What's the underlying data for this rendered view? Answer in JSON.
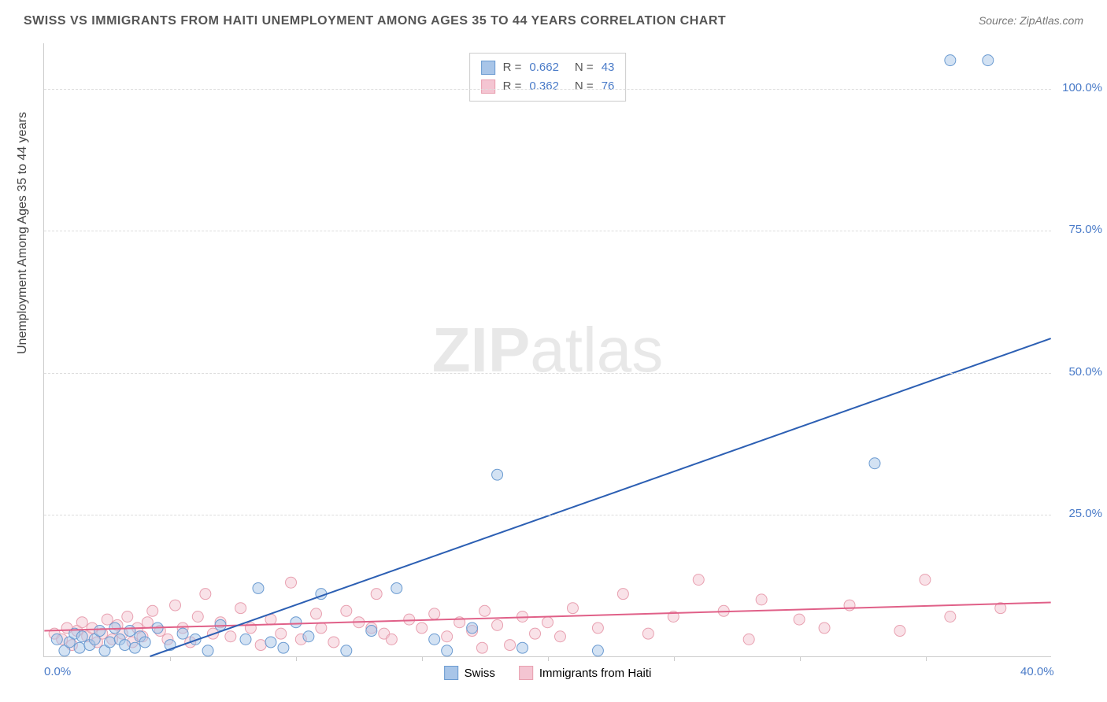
{
  "title": "SWISS VS IMMIGRANTS FROM HAITI UNEMPLOYMENT AMONG AGES 35 TO 44 YEARS CORRELATION CHART",
  "source": "Source: ZipAtlas.com",
  "ylabel": "Unemployment Among Ages 35 to 44 years",
  "watermark_a": "ZIP",
  "watermark_b": "atlas",
  "chart": {
    "type": "scatter",
    "xlim": [
      0,
      40
    ],
    "ylim": [
      0,
      108
    ],
    "xtick_labels": [
      "0.0%",
      "40.0%"
    ],
    "xtick_positions": [
      0,
      40
    ],
    "xtick_minor": [
      5,
      10,
      15,
      20,
      25,
      30,
      35
    ],
    "ytick_labels": [
      "25.0%",
      "50.0%",
      "75.0%",
      "100.0%"
    ],
    "ytick_positions": [
      25,
      50,
      75,
      100
    ],
    "grid_color": "#dddddd",
    "axis_color": "#cccccc",
    "background_color": "#ffffff",
    "marker_radius": 7,
    "marker_opacity": 0.5,
    "line_width": 2
  },
  "series": {
    "swiss": {
      "label": "Swiss",
      "color": "#6b9bd1",
      "fill": "#a8c5e8",
      "line_color": "#2c5fb3",
      "R": "0.662",
      "N": "43",
      "trend": {
        "x1": 4.2,
        "y1": 0,
        "x2": 40,
        "y2": 56
      },
      "points": [
        [
          0.5,
          3
        ],
        [
          0.8,
          1
        ],
        [
          1.0,
          2.5
        ],
        [
          1.2,
          4
        ],
        [
          1.4,
          1.5
        ],
        [
          1.5,
          3.5
        ],
        [
          1.8,
          2
        ],
        [
          2.0,
          3
        ],
        [
          2.2,
          4.5
        ],
        [
          2.4,
          1
        ],
        [
          2.6,
          2.5
        ],
        [
          2.8,
          5
        ],
        [
          3.0,
          3
        ],
        [
          3.2,
          2
        ],
        [
          3.4,
          4.5
        ],
        [
          3.6,
          1.5
        ],
        [
          3.8,
          3.5
        ],
        [
          4.0,
          2.5
        ],
        [
          4.5,
          5
        ],
        [
          5.0,
          2
        ],
        [
          5.5,
          4
        ],
        [
          6.0,
          3
        ],
        [
          6.5,
          1
        ],
        [
          7.0,
          5.5
        ],
        [
          8.0,
          3
        ],
        [
          8.5,
          12
        ],
        [
          9.0,
          2.5
        ],
        [
          9.5,
          1.5
        ],
        [
          10.0,
          6
        ],
        [
          10.5,
          3.5
        ],
        [
          11.0,
          11
        ],
        [
          12.0,
          1
        ],
        [
          13.0,
          4.5
        ],
        [
          14.0,
          12
        ],
        [
          15.5,
          3
        ],
        [
          16.0,
          1
        ],
        [
          17.0,
          5
        ],
        [
          18.0,
          32
        ],
        [
          19.0,
          1.5
        ],
        [
          22.0,
          1
        ],
        [
          33.0,
          34
        ],
        [
          36.0,
          105
        ],
        [
          37.5,
          105
        ]
      ]
    },
    "haiti": {
      "label": "Immigrants from Haiti",
      "color": "#e8a0b0",
      "fill": "#f4c5d2",
      "line_color": "#e06088",
      "R": "0.362",
      "N": "76",
      "trend": {
        "x1": 0,
        "y1": 4.5,
        "x2": 40,
        "y2": 9.5
      },
      "points": [
        [
          0.4,
          4
        ],
        [
          0.7,
          3
        ],
        [
          0.9,
          5
        ],
        [
          1.1,
          2
        ],
        [
          1.3,
          4.5
        ],
        [
          1.5,
          6
        ],
        [
          1.7,
          3.5
        ],
        [
          1.9,
          5
        ],
        [
          2.1,
          2.5
        ],
        [
          2.3,
          4
        ],
        [
          2.5,
          6.5
        ],
        [
          2.7,
          3
        ],
        [
          2.9,
          5.5
        ],
        [
          3.1,
          4
        ],
        [
          3.3,
          7
        ],
        [
          3.5,
          2.5
        ],
        [
          3.7,
          5
        ],
        [
          3.9,
          3.5
        ],
        [
          4.1,
          6
        ],
        [
          4.3,
          8
        ],
        [
          4.6,
          4.5
        ],
        [
          4.9,
          3
        ],
        [
          5.2,
          9
        ],
        [
          5.5,
          5
        ],
        [
          5.8,
          2.5
        ],
        [
          6.1,
          7
        ],
        [
          6.4,
          11
        ],
        [
          6.7,
          4
        ],
        [
          7.0,
          6
        ],
        [
          7.4,
          3.5
        ],
        [
          7.8,
          8.5
        ],
        [
          8.2,
          5
        ],
        [
          8.6,
          2
        ],
        [
          9.0,
          6.5
        ],
        [
          9.4,
          4
        ],
        [
          9.8,
          13
        ],
        [
          10.2,
          3
        ],
        [
          10.8,
          7.5
        ],
        [
          11.0,
          5
        ],
        [
          11.5,
          2.5
        ],
        [
          12.0,
          8
        ],
        [
          12.5,
          6
        ],
        [
          13.0,
          5
        ],
        [
          13.2,
          11
        ],
        [
          13.5,
          4
        ],
        [
          13.8,
          3
        ],
        [
          14.5,
          6.5
        ],
        [
          15.0,
          5
        ],
        [
          15.5,
          7.5
        ],
        [
          16.0,
          3.5
        ],
        [
          16.5,
          6
        ],
        [
          17.0,
          4.5
        ],
        [
          17.4,
          1.5
        ],
        [
          17.5,
          8
        ],
        [
          18.0,
          5.5
        ],
        [
          18.5,
          2
        ],
        [
          19.0,
          7
        ],
        [
          19.5,
          4
        ],
        [
          20.0,
          6
        ],
        [
          20.5,
          3.5
        ],
        [
          21.0,
          8.5
        ],
        [
          22.0,
          5
        ],
        [
          23.0,
          11
        ],
        [
          24.0,
          4
        ],
        [
          25.0,
          7
        ],
        [
          26.0,
          13.5
        ],
        [
          27.0,
          8
        ],
        [
          28.0,
          3
        ],
        [
          28.5,
          10
        ],
        [
          30.0,
          6.5
        ],
        [
          31.0,
          5
        ],
        [
          32.0,
          9
        ],
        [
          34.0,
          4.5
        ],
        [
          35.0,
          13.5
        ],
        [
          36.0,
          7
        ],
        [
          38.0,
          8.5
        ]
      ]
    }
  },
  "legend_top": {
    "R_label": "R =",
    "N_label": "N ="
  }
}
